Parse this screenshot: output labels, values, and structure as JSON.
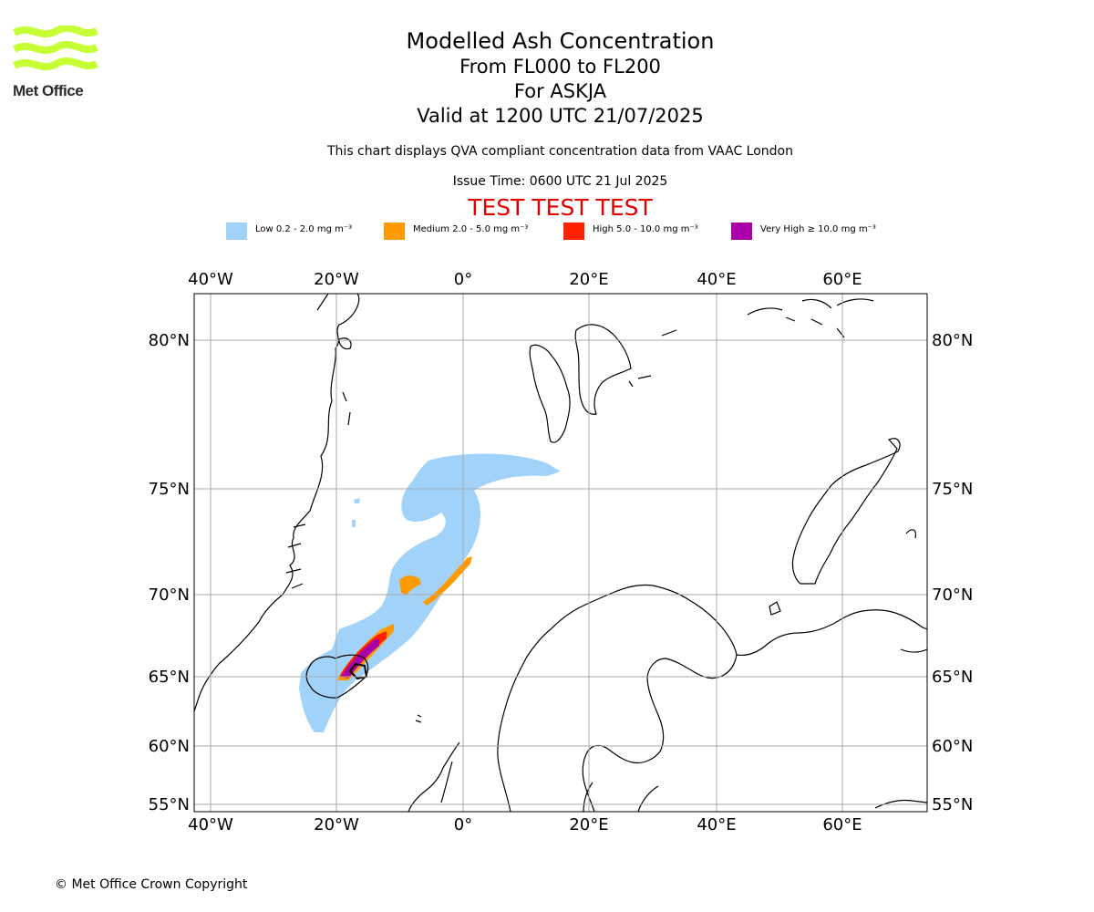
{
  "header": {
    "logo_text": "Met Office",
    "title": "Modelled Ash Concentration",
    "levels": "From FL000 to FL200",
    "volcano": "For ASKJA",
    "valid": "Valid at 1200 UTC 21/07/2025",
    "description": "This chart displays QVA compliant concentration data from VAAC London",
    "issue_time": "Issue Time: 0600 UTC 21 Jul 2025",
    "test_banner": "TEST TEST TEST"
  },
  "legend": [
    {
      "label": "Low 0.2 - 2.0 mg m⁻³",
      "color": "#a0d2fa"
    },
    {
      "label": "Medium 2.0 - 5.0 mg m⁻³",
      "color": "#ff9a00"
    },
    {
      "label": "High 5.0 - 10.0 mg m⁻³",
      "color": "#ff2200"
    },
    {
      "label": "Very High ≥ 10.0 mg m⁻³",
      "color": "#aa00aa"
    }
  ],
  "map": {
    "lon_labels": [
      "40°W",
      "20°W",
      "0°",
      "20°E",
      "40°E",
      "60°E"
    ],
    "lat_labels": [
      "80°N",
      "75°N",
      "70°N",
      "65°N",
      "60°N",
      "55°N"
    ],
    "grid_color": "#aaaaaa",
    "ash_colors": {
      "low": "#a0d2fa",
      "medium": "#ff9a00",
      "high": "#ff2200",
      "very_high": "#aa00aa"
    }
  },
  "footer": {
    "copyright": "© Met Office Crown Copyright"
  }
}
